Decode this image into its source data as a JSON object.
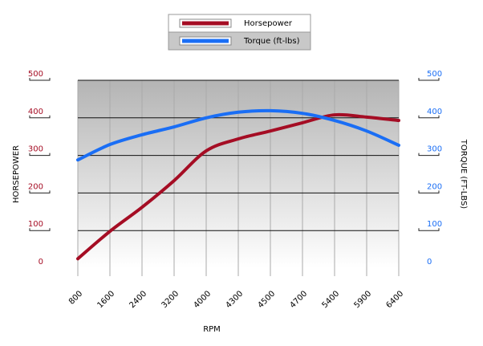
{
  "chart_data": {
    "type": "line",
    "categories": [
      800,
      1600,
      2400,
      3200,
      4000,
      4300,
      4500,
      4700,
      5400,
      5900,
      6400
    ],
    "series": [
      {
        "name": "Horsepower",
        "color": "#a50d24",
        "values": [
          25,
          98,
          162,
          233,
          312,
          344,
          365,
          387,
          408,
          402,
          393
        ]
      },
      {
        "name": "Torque (ft-lbs)",
        "color": "#1a6ef5",
        "axis": "y2",
        "values": [
          288,
          329,
          355,
          376,
          400,
          415,
          419,
          412,
          393,
          365,
          327
        ]
      }
    ],
    "ylabel": "HORSEPOWER",
    "y2label": "TORQUE (FT-LBS)",
    "xlabel": "RPM",
    "ylim": [
      0,
      500
    ],
    "yticks": [
      0,
      100,
      200,
      300,
      400,
      500
    ],
    "y2lim": [
      0,
      500
    ],
    "y2ticks": [
      0,
      100,
      200,
      300,
      400,
      500
    ],
    "grid": true
  }
}
